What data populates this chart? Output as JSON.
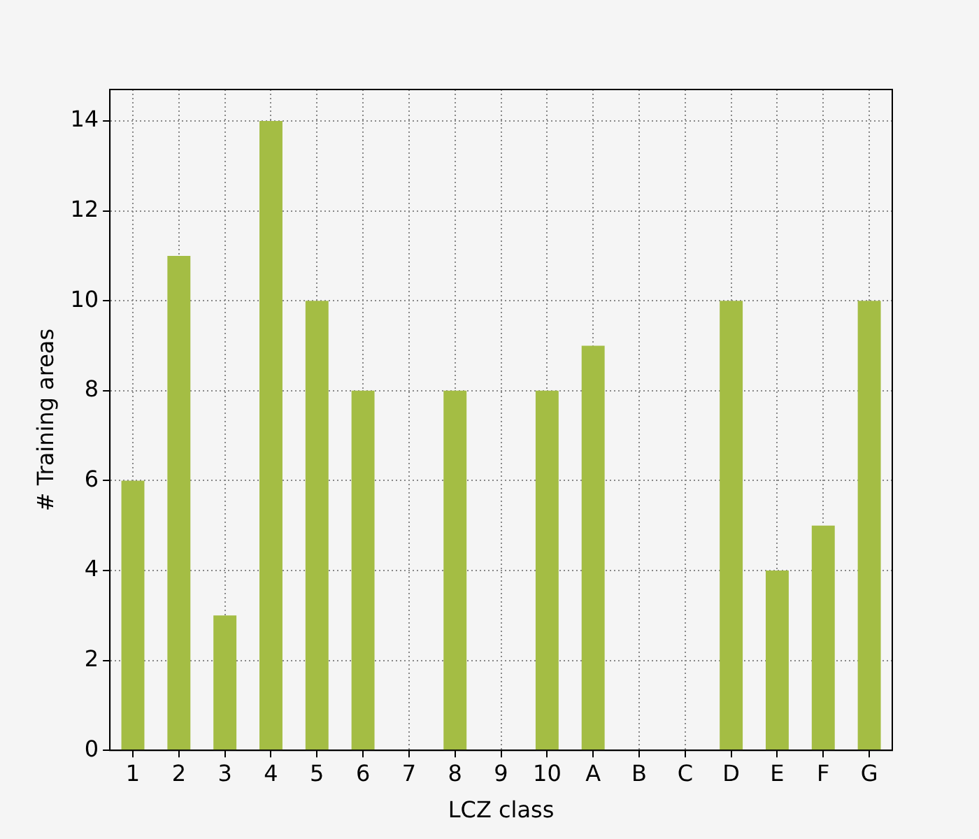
{
  "chart_data": {
    "type": "bar",
    "xlabel": "LCZ class",
    "ylabel": "# Training areas",
    "categories": [
      "1",
      "2",
      "3",
      "4",
      "5",
      "6",
      "7",
      "8",
      "9",
      "10",
      "A",
      "B",
      "C",
      "D",
      "E",
      "F",
      "G"
    ],
    "values": [
      6,
      11,
      3,
      14,
      10,
      8,
      0,
      8,
      0,
      8,
      9,
      0,
      0,
      10,
      4,
      5,
      10
    ],
    "color": "#a4bd44",
    "ylim": [
      0,
      14.7
    ],
    "yticks": [
      0,
      2,
      4,
      6,
      8,
      10,
      12,
      14
    ],
    "grid": true
  }
}
